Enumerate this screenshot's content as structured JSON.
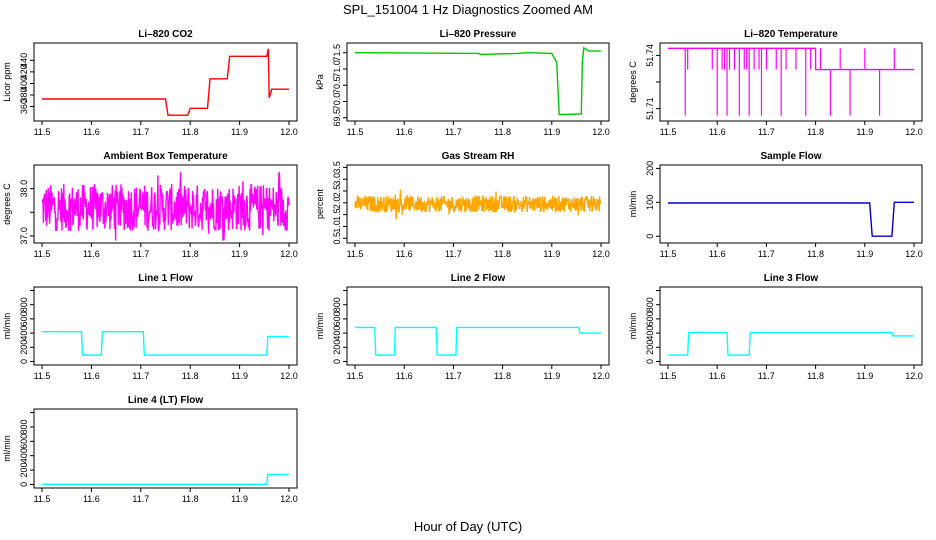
{
  "figure": {
    "title": "SPL_151004  1 Hz Diagnostics Zoomed AM",
    "xlabel": "Hour of Day (UTC)"
  },
  "chart_data": [
    {
      "type": "line",
      "title": "Li–820 CO2",
      "ylabel": "Licor ppm",
      "xlim": [
        11.5,
        12.0
      ],
      "ylim": [
        335,
        470
      ],
      "xticks": [
        "11.5",
        "11.6",
        "11.7",
        "11.8",
        "11.9",
        "12.0"
      ],
      "yticks": [
        360,
        380,
        400,
        420,
        440
      ],
      "ytick_labels": [
        "360",
        "380",
        "400",
        "420",
        "440"
      ],
      "series": [
        {
          "color": "#ff0000",
          "mode": "line",
          "points": [
            [
              11.5,
              373
            ],
            [
              11.75,
              373
            ],
            [
              11.755,
              345
            ],
            [
              11.795,
              345
            ],
            [
              11.8,
              357
            ],
            [
              11.835,
              357
            ],
            [
              11.84,
              408
            ],
            [
              11.875,
              408
            ],
            [
              11.88,
              447
            ],
            [
              11.955,
              447
            ],
            [
              11.958,
              460
            ],
            [
              11.96,
              375
            ],
            [
              11.965,
              390
            ],
            [
              12.0,
              390
            ]
          ]
        }
      ]
    },
    {
      "type": "line",
      "title": "Li–820 Pressure",
      "ylabel": "kPa",
      "xlim": [
        11.5,
        12.0
      ],
      "ylim": [
        69.4,
        71.8
      ],
      "xticks": [
        "11.5",
        "11.6",
        "11.7",
        "11.8",
        "11.9",
        "12.0"
      ],
      "yticks": [
        69.5,
        70.0,
        70.5,
        71.0,
        71.5
      ],
      "ytick_labels": [
        "69.5",
        "70.0",
        "70.5",
        "71.0",
        "71.5"
      ],
      "series": [
        {
          "color": "#00c800",
          "mode": "line",
          "points": [
            [
              11.5,
              71.5
            ],
            [
              11.75,
              71.48
            ],
            [
              11.755,
              71.45
            ],
            [
              11.83,
              71.48
            ],
            [
              11.85,
              71.5
            ],
            [
              11.9,
              71.48
            ],
            [
              11.91,
              71.2
            ],
            [
              11.915,
              69.6
            ],
            [
              11.92,
              69.6
            ],
            [
              11.96,
              69.62
            ],
            [
              11.962,
              71.2
            ],
            [
              11.965,
              71.65
            ],
            [
              11.975,
              71.55
            ],
            [
              12.0,
              71.55
            ]
          ]
        }
      ]
    },
    {
      "type": "line",
      "title": "Li–820 Temperature",
      "ylabel": "degrees C",
      "xlim": [
        11.5,
        12.0
      ],
      "ylim": [
        51.703,
        51.747
      ],
      "xticks": [
        "11.5",
        "11.6",
        "11.7",
        "11.8",
        "11.9",
        "12.0"
      ],
      "yticks": [
        51.71,
        51.725,
        51.74
      ],
      "ytick_labels": [
        "51.71",
        "51.74"
      ],
      "series": [
        {
          "color": "#ff00ff",
          "mode": "line",
          "points": [
            [
              11.5,
              51.744
            ],
            [
              11.8,
              51.744
            ],
            [
              11.8,
              51.732
            ],
            [
              12.0,
              51.732
            ]
          ]
        }
      ]
    },
    {
      "type": "line",
      "title": "Ambient Box Temperature",
      "ylabel": "degrees C",
      "xlim": [
        11.5,
        12.0
      ],
      "ylim": [
        36.85,
        38.5
      ],
      "xticks": [
        "11.5",
        "11.6",
        "11.7",
        "11.8",
        "11.9",
        "12.0"
      ],
      "yticks": [
        37.0,
        37.5,
        38.0
      ],
      "ytick_labels": [
        "37.0",
        "38.0"
      ],
      "series": [
        {
          "color": "#ff00ff",
          "mode": "noise",
          "base": 37.6,
          "spread": 0.5,
          "clip": [
            36.9,
            38.35
          ]
        }
      ]
    },
    {
      "type": "line",
      "title": "Gas Stream RH",
      "ylabel": "percent",
      "xlim": [
        11.5,
        12.0
      ],
      "ylim": [
        0.3,
        3.6
      ],
      "xticks": [
        "11.5",
        "11.6",
        "11.7",
        "11.8",
        "11.9",
        "12.0"
      ],
      "yticks": [
        0.5,
        1.0,
        1.5,
        2.0,
        2.5,
        3.0,
        3.5
      ],
      "ytick_labels": [
        "0.5",
        "1.0",
        "1.5",
        "2.0",
        "2.5",
        "3.0",
        "3.5"
      ],
      "series": [
        {
          "color": "#ffa500",
          "mode": "noise",
          "base": 1.95,
          "spread": 0.35,
          "clip": [
            0.5,
            3.5
          ]
        }
      ]
    },
    {
      "type": "line",
      "title": "Sample Flow",
      "ylabel": "ml/min",
      "xlim": [
        11.5,
        12.0
      ],
      "ylim": [
        -20,
        210
      ],
      "xticks": [
        "11.5",
        "11.6",
        "11.7",
        "11.8",
        "11.9",
        "12.0"
      ],
      "yticks": [
        0,
        100,
        200
      ],
      "ytick_labels": [
        "0",
        "100",
        "200"
      ],
      "series": [
        {
          "color": "#0000cd",
          "mode": "line",
          "points": [
            [
              11.5,
              98
            ],
            [
              11.91,
              98
            ],
            [
              11.915,
              0
            ],
            [
              11.955,
              0
            ],
            [
              11.96,
              100
            ],
            [
              12.0,
              100
            ]
          ]
        }
      ]
    },
    {
      "type": "line",
      "title": "Line 1 Flow",
      "ylabel": "ml/min",
      "xlim": [
        11.5,
        12.0
      ],
      "ylim": [
        -50,
        1050
      ],
      "xticks": [
        "11.5",
        "11.6",
        "11.7",
        "11.8",
        "11.9",
        "12.0"
      ],
      "yticks": [
        0,
        200,
        400,
        600,
        800,
        1000
      ],
      "ytick_labels": [
        "0",
        "200",
        "400",
        "600",
        "800"
      ],
      "series": [
        {
          "color": "#00ffff",
          "mode": "line",
          "points": [
            [
              11.5,
              420
            ],
            [
              11.58,
              420
            ],
            [
              11.582,
              90
            ],
            [
              11.62,
              90
            ],
            [
              11.622,
              420
            ],
            [
              11.705,
              420
            ],
            [
              11.707,
              90
            ],
            [
              11.955,
              90
            ],
            [
              11.957,
              350
            ],
            [
              12.0,
              350
            ]
          ]
        }
      ]
    },
    {
      "type": "line",
      "title": "Line 2 Flow",
      "ylabel": "ml/min",
      "xlim": [
        11.5,
        12.0
      ],
      "ylim": [
        -50,
        1050
      ],
      "xticks": [
        "11.5",
        "11.6",
        "11.7",
        "11.8",
        "11.9",
        "12.0"
      ],
      "yticks": [
        0,
        200,
        400,
        600,
        800,
        1000
      ],
      "ytick_labels": [
        "0",
        "200",
        "400",
        "600",
        "800"
      ],
      "series": [
        {
          "color": "#00ffff",
          "mode": "line",
          "points": [
            [
              11.5,
              480
            ],
            [
              11.54,
              480
            ],
            [
              11.542,
              90
            ],
            [
              11.58,
              90
            ],
            [
              11.582,
              480
            ],
            [
              11.665,
              480
            ],
            [
              11.667,
              90
            ],
            [
              11.705,
              90
            ],
            [
              11.707,
              480
            ],
            [
              11.955,
              480
            ],
            [
              11.957,
              400
            ],
            [
              12.0,
              400
            ]
          ]
        }
      ]
    },
    {
      "type": "line",
      "title": "Line 3 Flow",
      "ylabel": "ml/min",
      "xlim": [
        11.5,
        12.0
      ],
      "ylim": [
        -50,
        1050
      ],
      "xticks": [
        "11.5",
        "11.6",
        "11.7",
        "11.8",
        "11.9",
        "12.0"
      ],
      "yticks": [
        0,
        200,
        400,
        600,
        800,
        1000
      ],
      "ytick_labels": [
        "0",
        "200",
        "400",
        "600",
        "800"
      ],
      "series": [
        {
          "color": "#00ffff",
          "mode": "line",
          "points": [
            [
              11.5,
              90
            ],
            [
              11.54,
              90
            ],
            [
              11.542,
              410
            ],
            [
              11.62,
              410
            ],
            [
              11.622,
              90
            ],
            [
              11.665,
              90
            ],
            [
              11.667,
              410
            ],
            [
              11.955,
              410
            ],
            [
              11.957,
              360
            ],
            [
              12.0,
              360
            ]
          ]
        }
      ]
    },
    {
      "type": "line",
      "title": "Line 4 (LT) Flow",
      "ylabel": "ml/min",
      "xlim": [
        11.5,
        12.0
      ],
      "ylim": [
        -50,
        1050
      ],
      "xticks": [
        "11.5",
        "11.6",
        "11.7",
        "11.8",
        "11.9",
        "12.0"
      ],
      "yticks": [
        0,
        200,
        400,
        600,
        800,
        1000
      ],
      "ytick_labels": [
        "0",
        "200",
        "400",
        "600",
        "800"
      ],
      "series": [
        {
          "color": "#00ffff",
          "mode": "line",
          "points": [
            [
              11.5,
              2
            ],
            [
              11.955,
              2
            ],
            [
              11.957,
              140
            ],
            [
              12.0,
              140
            ]
          ]
        }
      ]
    }
  ]
}
